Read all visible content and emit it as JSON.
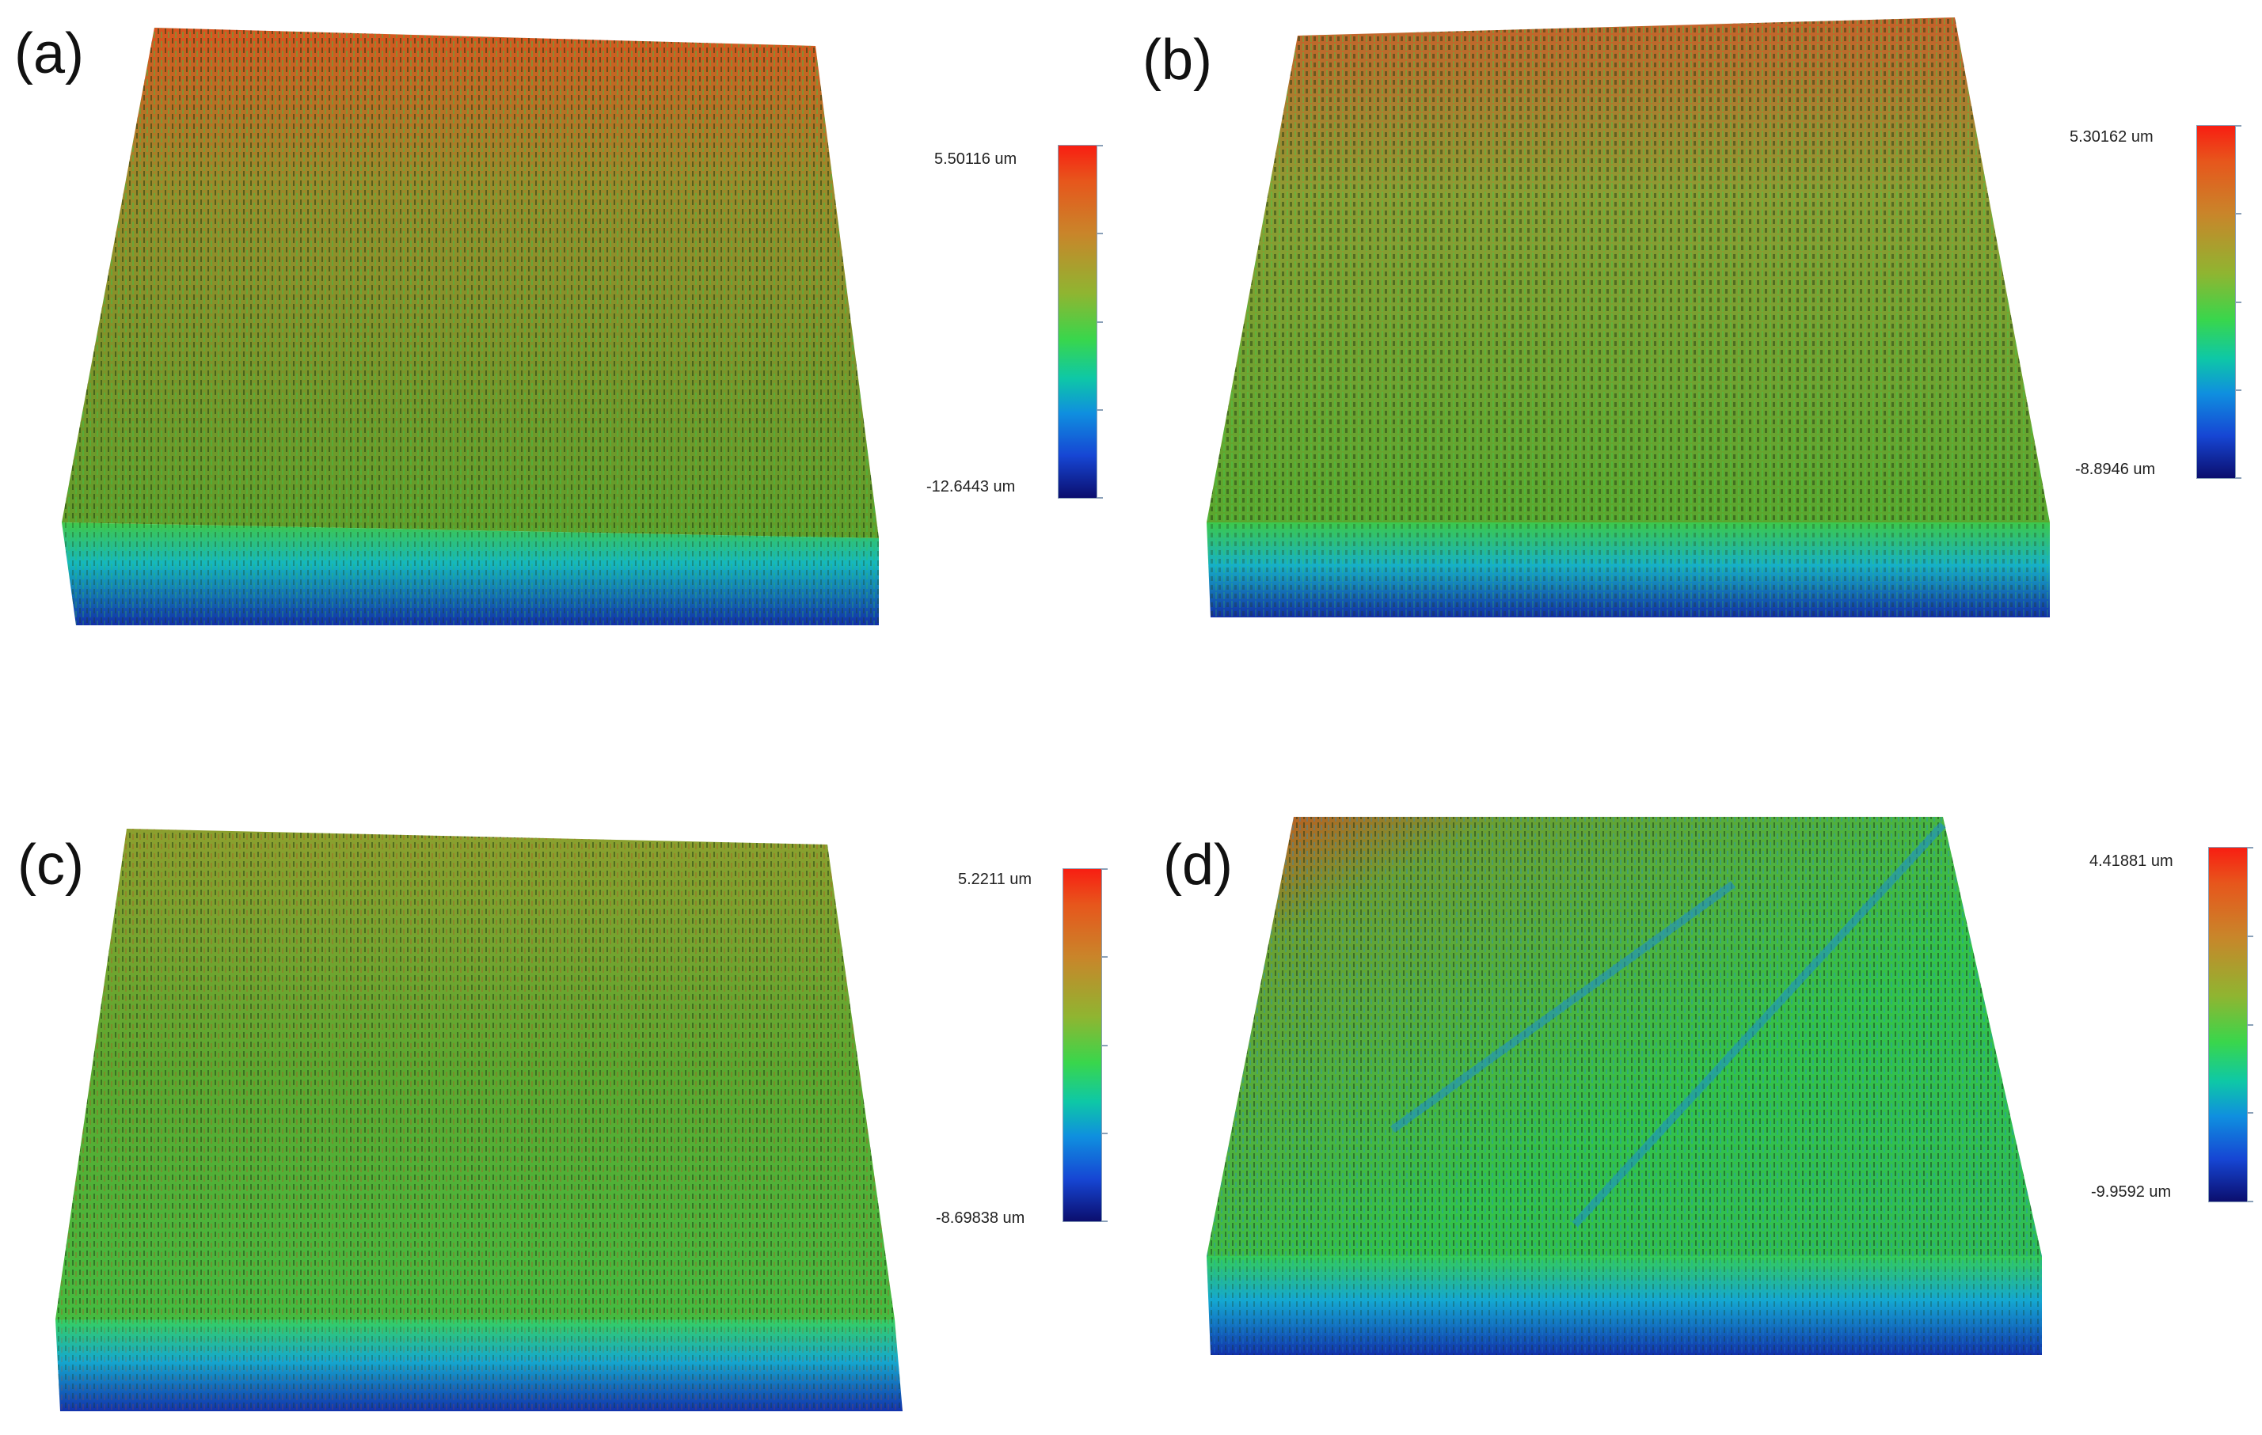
{
  "panels": [
    {
      "label": "(a)",
      "max": "5.50116 um",
      "min": "-12.6443 um"
    },
    {
      "label": "(b)",
      "max": "5.30162 um",
      "min": "-8.8946 um"
    },
    {
      "label": "(c)",
      "max": "5.2211 um",
      "min": "-8.69838 um"
    },
    {
      "label": "(d)",
      "max": "4.41881 um",
      "min": "-9.9592 um"
    }
  ],
  "colors": {
    "high": "#f01e14",
    "mid": "#3cd04a",
    "low": "#0b0e6e"
  }
}
